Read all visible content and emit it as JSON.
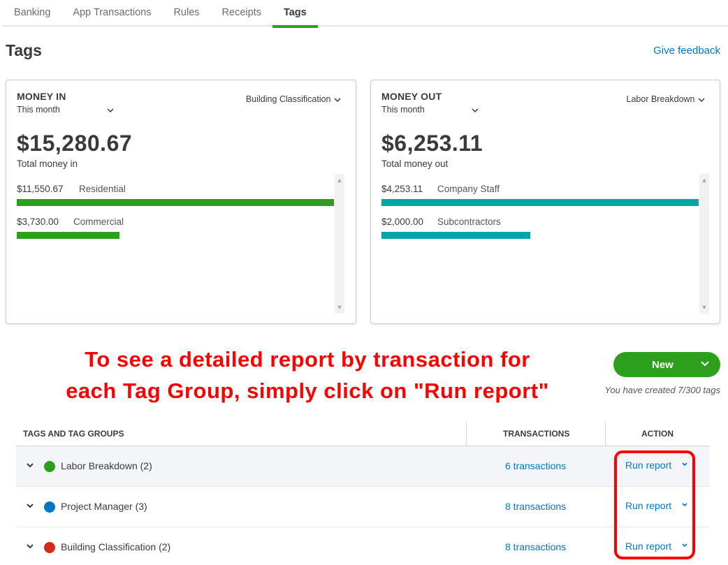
{
  "tabs": [
    {
      "label": "Banking"
    },
    {
      "label": "App Transactions"
    },
    {
      "label": "Rules"
    },
    {
      "label": "Receipts"
    },
    {
      "label": "Tags"
    }
  ],
  "page": {
    "title": "Tags",
    "feedback_link": "Give feedback"
  },
  "money_in": {
    "label": "MONEY IN",
    "period": "This month",
    "group": "Building Classification",
    "amount": "$15,280.67",
    "total_label": "Total money in",
    "items": [
      {
        "amount": "$11,550.67",
        "name": "Residential",
        "fraction": 1.0
      },
      {
        "amount": "$3,730.00",
        "name": "Commercial",
        "fraction": 0.323
      }
    ]
  },
  "money_out": {
    "label": "MONEY OUT",
    "period": "This month",
    "group": "Labor Breakdown",
    "amount": "$6,253.11",
    "total_label": "Total money out",
    "items": [
      {
        "amount": "$4,253.11",
        "name": "Company Staff",
        "fraction": 1.0
      },
      {
        "amount": "$2,000.00",
        "name": "Subcontractors",
        "fraction": 0.47
      }
    ]
  },
  "annotation": {
    "line1": "To see a detailed report by transaction for",
    "line2": "each Tag Group, simply click on \"Run report\""
  },
  "new_button": {
    "label": "New"
  },
  "tag_count": "You have created 7/300 tags",
  "table": {
    "headers": {
      "tags": "TAGS AND TAG GROUPS",
      "transactions": "TRANSACTIONS",
      "action": "ACTION"
    },
    "rows": [
      {
        "name": "Labor Breakdown (2)",
        "color": "#2ca01c",
        "transactions": "6 transactions",
        "action": "Run report"
      },
      {
        "name": "Project Manager (3)",
        "color": "#0077c5",
        "transactions": "8 transactions",
        "action": "Run report"
      },
      {
        "name": "Building Classification (2)",
        "color": "#d52b1e",
        "transactions": "8 transactions",
        "action": "Run report"
      }
    ]
  },
  "colors": {
    "brand_green": "#2ca01c",
    "link_blue": "#0077c5",
    "teal": "#00a6a4",
    "annotation_red": "#ff0000"
  }
}
